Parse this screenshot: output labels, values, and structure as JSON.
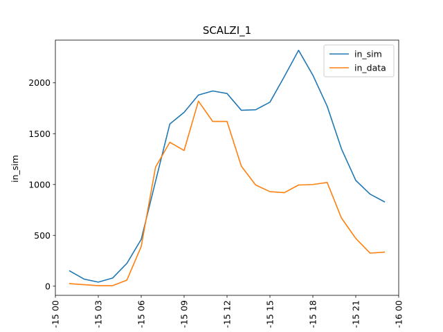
{
  "chart_data": {
    "type": "line",
    "title": "SCALZI_1",
    "xlabel": "",
    "ylabel": "in_sim",
    "x_hours": [
      1,
      2,
      3,
      4,
      5,
      6,
      7,
      8,
      9,
      10,
      11,
      12,
      13,
      14,
      15,
      16,
      17,
      18,
      19,
      20,
      21,
      22,
      23
    ],
    "xlim": [
      0,
      24
    ],
    "x_ticks": [
      {
        "value": 0,
        "label": "-15 00"
      },
      {
        "value": 3,
        "label": "-15 03"
      },
      {
        "value": 6,
        "label": "-15 06"
      },
      {
        "value": 9,
        "label": "-15 09"
      },
      {
        "value": 12,
        "label": "-15 12"
      },
      {
        "value": 15,
        "label": "-15 15"
      },
      {
        "value": 18,
        "label": "-15 18"
      },
      {
        "value": 21,
        "label": "-15 21"
      },
      {
        "value": 24,
        "label": "-16 00"
      }
    ],
    "ylim": [
      -90,
      2420
    ],
    "y_ticks": [
      0,
      500,
      1000,
      1500,
      2000
    ],
    "grid": false,
    "legend_position": "top-right",
    "series": [
      {
        "name": "in_sim",
        "color": "#1f77b4",
        "values": [
          150,
          70,
          40,
          80,
          225,
          460,
          1030,
          1595,
          1710,
          1880,
          1920,
          1895,
          1730,
          1735,
          1810,
          2060,
          2320,
          2075,
          1770,
          1350,
          1040,
          905,
          830
        ]
      },
      {
        "name": "in_data",
        "color": "#ff7f0e",
        "values": [
          25,
          15,
          5,
          5,
          60,
          390,
          1170,
          1415,
          1335,
          1820,
          1620,
          1620,
          1180,
          995,
          930,
          920,
          995,
          1000,
          1020,
          670,
          470,
          325,
          335
        ]
      }
    ]
  }
}
